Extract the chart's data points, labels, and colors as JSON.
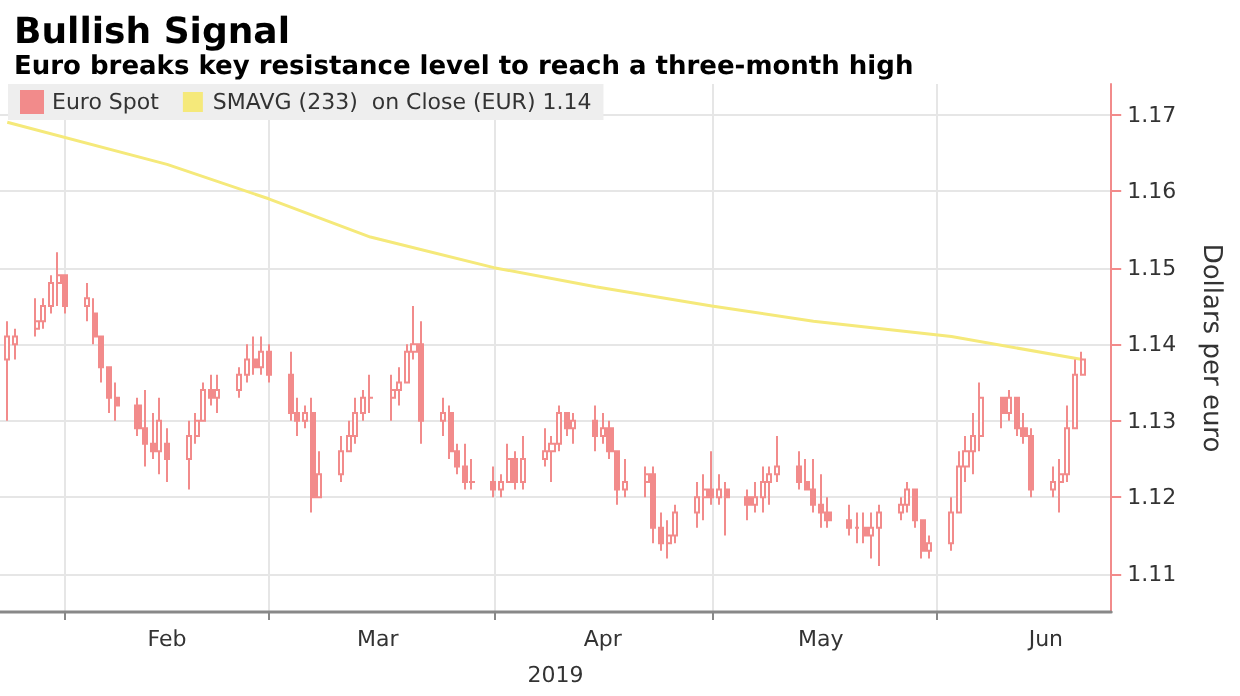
{
  "chart_data": {
    "type": "candlestick",
    "title": "Bullish Signal",
    "subtitle": "Euro breaks key resistance level to reach a three-month high",
    "xlabel": "2019",
    "ylabel": "Dollars per euro",
    "x": [
      "2019-01-24",
      "2019-01-25",
      "2019-01-28",
      "2019-01-29",
      "2019-01-30",
      "2019-01-31",
      "2019-02-01",
      "2019-02-04",
      "2019-02-05",
      "2019-02-06",
      "2019-02-07",
      "2019-02-08",
      "2019-02-11",
      "2019-02-12",
      "2019-02-13",
      "2019-02-14",
      "2019-02-15",
      "2019-02-18",
      "2019-02-19",
      "2019-02-20",
      "2019-02-21",
      "2019-02-22",
      "2019-02-25",
      "2019-02-26",
      "2019-02-27",
      "2019-02-28",
      "2019-03-01",
      "2019-03-04",
      "2019-03-05",
      "2019-03-06",
      "2019-03-07",
      "2019-03-08",
      "2019-03-11",
      "2019-03-12",
      "2019-03-13",
      "2019-03-14",
      "2019-03-15",
      "2019-03-18",
      "2019-03-19",
      "2019-03-20",
      "2019-03-21",
      "2019-03-22",
      "2019-03-25",
      "2019-03-26",
      "2019-03-27",
      "2019-03-28",
      "2019-03-29",
      "2019-04-01",
      "2019-04-02",
      "2019-04-03",
      "2019-04-04",
      "2019-04-05",
      "2019-04-08",
      "2019-04-09",
      "2019-04-10",
      "2019-04-11",
      "2019-04-12",
      "2019-04-15",
      "2019-04-16",
      "2019-04-17",
      "2019-04-18",
      "2019-04-19",
      "2019-04-22",
      "2019-04-23",
      "2019-04-24",
      "2019-04-25",
      "2019-04-26",
      "2019-04-29",
      "2019-04-30",
      "2019-05-01",
      "2019-05-02",
      "2019-05-03",
      "2019-05-06",
      "2019-05-07",
      "2019-05-08",
      "2019-05-09",
      "2019-05-10",
      "2019-05-13",
      "2019-05-14",
      "2019-05-15",
      "2019-05-16",
      "2019-05-17",
      "2019-05-20",
      "2019-05-21",
      "2019-05-22",
      "2019-05-23",
      "2019-05-24",
      "2019-05-27",
      "2019-05-28",
      "2019-05-29",
      "2019-05-30",
      "2019-05-31",
      "2019-06-03",
      "2019-06-04",
      "2019-06-05",
      "2019-06-06",
      "2019-06-07",
      "2019-06-10",
      "2019-06-11",
      "2019-06-12",
      "2019-06-13",
      "2019-06-14",
      "2019-06-17",
      "2019-06-18",
      "2019-06-19",
      "2019-06-20",
      "2019-06-21"
    ],
    "series": [
      {
        "name": "Euro Spot",
        "color": "#f28b8b",
        "ohlc": [
          [
            1.138,
            1.143,
            1.13,
            1.141
          ],
          [
            1.14,
            1.142,
            1.138,
            1.141
          ],
          [
            1.142,
            1.146,
            1.141,
            1.143
          ],
          [
            1.143,
            1.146,
            1.142,
            1.145
          ],
          [
            1.145,
            1.149,
            1.144,
            1.148
          ],
          [
            1.148,
            1.152,
            1.145,
            1.149
          ],
          [
            1.149,
            1.149,
            1.144,
            1.145
          ],
          [
            1.145,
            1.148,
            1.143,
            1.146
          ],
          [
            1.144,
            1.146,
            1.14,
            1.141
          ],
          [
            1.141,
            1.141,
            1.135,
            1.137
          ],
          [
            1.137,
            1.137,
            1.131,
            1.133
          ],
          [
            1.133,
            1.135,
            1.13,
            1.132
          ],
          [
            1.132,
            1.133,
            1.128,
            1.129
          ],
          [
            1.129,
            1.134,
            1.124,
            1.127
          ],
          [
            1.127,
            1.131,
            1.125,
            1.126
          ],
          [
            1.126,
            1.133,
            1.123,
            1.13
          ],
          [
            1.127,
            1.129,
            1.122,
            1.125
          ],
          [
            1.125,
            1.13,
            1.121,
            1.128
          ],
          [
            1.128,
            1.131,
            1.127,
            1.13
          ],
          [
            1.13,
            1.135,
            1.13,
            1.134
          ],
          [
            1.134,
            1.136,
            1.132,
            1.133
          ],
          [
            1.133,
            1.136,
            1.131,
            1.134
          ],
          [
            1.134,
            1.137,
            1.133,
            1.136
          ],
          [
            1.136,
            1.14,
            1.135,
            1.138
          ],
          [
            1.138,
            1.141,
            1.136,
            1.137
          ],
          [
            1.137,
            1.141,
            1.136,
            1.139
          ],
          [
            1.139,
            1.14,
            1.135,
            1.136
          ],
          [
            1.136,
            1.139,
            1.13,
            1.131
          ],
          [
            1.131,
            1.133,
            1.128,
            1.13
          ],
          [
            1.13,
            1.132,
            1.129,
            1.131
          ],
          [
            1.131,
            1.133,
            1.118,
            1.12
          ],
          [
            1.12,
            1.126,
            1.12,
            1.123
          ],
          [
            1.123,
            1.128,
            1.122,
            1.126
          ],
          [
            1.126,
            1.13,
            1.126,
            1.128
          ],
          [
            1.128,
            1.133,
            1.127,
            1.131
          ],
          [
            1.131,
            1.134,
            1.13,
            1.133
          ],
          [
            1.133,
            1.136,
            1.131,
            1.133
          ],
          [
            1.133,
            1.136,
            1.13,
            1.134
          ],
          [
            1.134,
            1.137,
            1.132,
            1.135
          ],
          [
            1.135,
            1.14,
            1.135,
            1.139
          ],
          [
            1.139,
            1.145,
            1.138,
            1.14
          ],
          [
            1.14,
            1.143,
            1.127,
            1.13
          ],
          [
            1.13,
            1.133,
            1.128,
            1.131
          ],
          [
            1.131,
            1.132,
            1.125,
            1.126
          ],
          [
            1.126,
            1.127,
            1.123,
            1.124
          ],
          [
            1.124,
            1.127,
            1.121,
            1.122
          ],
          [
            1.122,
            1.125,
            1.121,
            1.122
          ],
          [
            1.122,
            1.124,
            1.12,
            1.121
          ],
          [
            1.121,
            1.123,
            1.12,
            1.122
          ],
          [
            1.122,
            1.127,
            1.122,
            1.125
          ],
          [
            1.125,
            1.126,
            1.121,
            1.122
          ],
          [
            1.122,
            1.128,
            1.121,
            1.125
          ],
          [
            1.125,
            1.129,
            1.124,
            1.126
          ],
          [
            1.126,
            1.128,
            1.122,
            1.127
          ],
          [
            1.127,
            1.132,
            1.126,
            1.131
          ],
          [
            1.131,
            1.131,
            1.128,
            1.129
          ],
          [
            1.129,
            1.131,
            1.127,
            1.13
          ],
          [
            1.13,
            1.132,
            1.126,
            1.128
          ],
          [
            1.128,
            1.131,
            1.127,
            1.129
          ],
          [
            1.129,
            1.13,
            1.125,
            1.126
          ],
          [
            1.126,
            1.126,
            1.119,
            1.121
          ],
          [
            1.121,
            1.125,
            1.12,
            1.122
          ],
          [
            1.122,
            1.124,
            1.12,
            1.123
          ],
          [
            1.123,
            1.124,
            1.114,
            1.116
          ],
          [
            1.116,
            1.118,
            1.113,
            1.114
          ],
          [
            1.114,
            1.117,
            1.112,
            1.115
          ],
          [
            1.115,
            1.119,
            1.114,
            1.118
          ],
          [
            1.118,
            1.122,
            1.116,
            1.12
          ],
          [
            1.12,
            1.123,
            1.117,
            1.121
          ],
          [
            1.121,
            1.126,
            1.119,
            1.12
          ],
          [
            1.12,
            1.123,
            1.119,
            1.121
          ],
          [
            1.121,
            1.122,
            1.115,
            1.12
          ],
          [
            1.12,
            1.121,
            1.117,
            1.119
          ],
          [
            1.119,
            1.122,
            1.118,
            1.12
          ],
          [
            1.12,
            1.124,
            1.118,
            1.122
          ],
          [
            1.122,
            1.124,
            1.119,
            1.123
          ],
          [
            1.123,
            1.128,
            1.122,
            1.124
          ],
          [
            1.124,
            1.126,
            1.121,
            1.122
          ],
          [
            1.122,
            1.125,
            1.121,
            1.121
          ],
          [
            1.121,
            1.125,
            1.118,
            1.119
          ],
          [
            1.119,
            1.123,
            1.116,
            1.118
          ],
          [
            1.118,
            1.12,
            1.116,
            1.117
          ],
          [
            1.117,
            1.119,
            1.115,
            1.116
          ],
          [
            1.116,
            1.118,
            1.114,
            1.116
          ],
          [
            1.116,
            1.118,
            1.114,
            1.115
          ],
          [
            1.115,
            1.118,
            1.112,
            1.116
          ],
          [
            1.116,
            1.119,
            1.111,
            1.118
          ],
          [
            1.118,
            1.12,
            1.117,
            1.119
          ],
          [
            1.119,
            1.122,
            1.118,
            1.121
          ],
          [
            1.121,
            1.121,
            1.116,
            1.117
          ],
          [
            1.117,
            1.117,
            1.112,
            1.113
          ],
          [
            1.113,
            1.115,
            1.112,
            1.114
          ],
          [
            1.114,
            1.12,
            1.113,
            1.118
          ],
          [
            1.118,
            1.126,
            1.118,
            1.124
          ],
          [
            1.124,
            1.128,
            1.122,
            1.126
          ],
          [
            1.126,
            1.131,
            1.123,
            1.128
          ],
          [
            1.128,
            1.135,
            1.126,
            1.133
          ],
          [
            1.133,
            1.133,
            1.129,
            1.131
          ],
          [
            1.131,
            1.134,
            1.13,
            1.133
          ],
          [
            1.133,
            1.133,
            1.128,
            1.129
          ],
          [
            1.129,
            1.131,
            1.127,
            1.128
          ],
          [
            1.128,
            1.129,
            1.12,
            1.121
          ],
          [
            1.121,
            1.124,
            1.12,
            1.122
          ],
          [
            1.122,
            1.125,
            1.118,
            1.123
          ],
          [
            1.123,
            1.132,
            1.122,
            1.129
          ],
          [
            1.129,
            1.138,
            1.129,
            1.136
          ],
          [
            1.136,
            1.139,
            1.136,
            1.138
          ]
        ]
      },
      {
        "type": "line",
        "name": "SMAVG (233)  on Close (EUR) 1.14",
        "color": "#f5e97a",
        "x": [
          "2019-01-24",
          "2019-02-15",
          "2019-03-01",
          "2019-03-15",
          "2019-04-01",
          "2019-04-15",
          "2019-05-01",
          "2019-05-15",
          "2019-06-03",
          "2019-06-21"
        ],
        "values": [
          1.169,
          1.1635,
          1.159,
          1.154,
          1.15,
          1.1475,
          1.145,
          1.143,
          1.141,
          1.138
        ]
      }
    ],
    "xlim": [
      "2019-01-23",
      "2019-06-25"
    ],
    "xticks": [
      {
        "value": "2019-02-01",
        "label": null
      },
      {
        "value": "2019-02-15",
        "label": "Feb"
      },
      {
        "value": "2019-03-01",
        "label": null
      },
      {
        "value": "2019-03-16",
        "label": "Mar"
      },
      {
        "value": "2019-04-01",
        "label": null
      },
      {
        "value": "2019-04-16",
        "label": "Apr"
      },
      {
        "value": "2019-05-01",
        "label": null
      },
      {
        "value": "2019-05-16",
        "label": "May"
      },
      {
        "value": "2019-06-01",
        "label": null
      },
      {
        "value": "2019-06-16",
        "label": "Jun"
      }
    ],
    "ylim": [
      1.105,
      1.174
    ],
    "yticks": [
      1.11,
      1.12,
      1.13,
      1.14,
      1.15,
      1.16,
      1.17
    ],
    "grid": true,
    "legend": "top left"
  }
}
